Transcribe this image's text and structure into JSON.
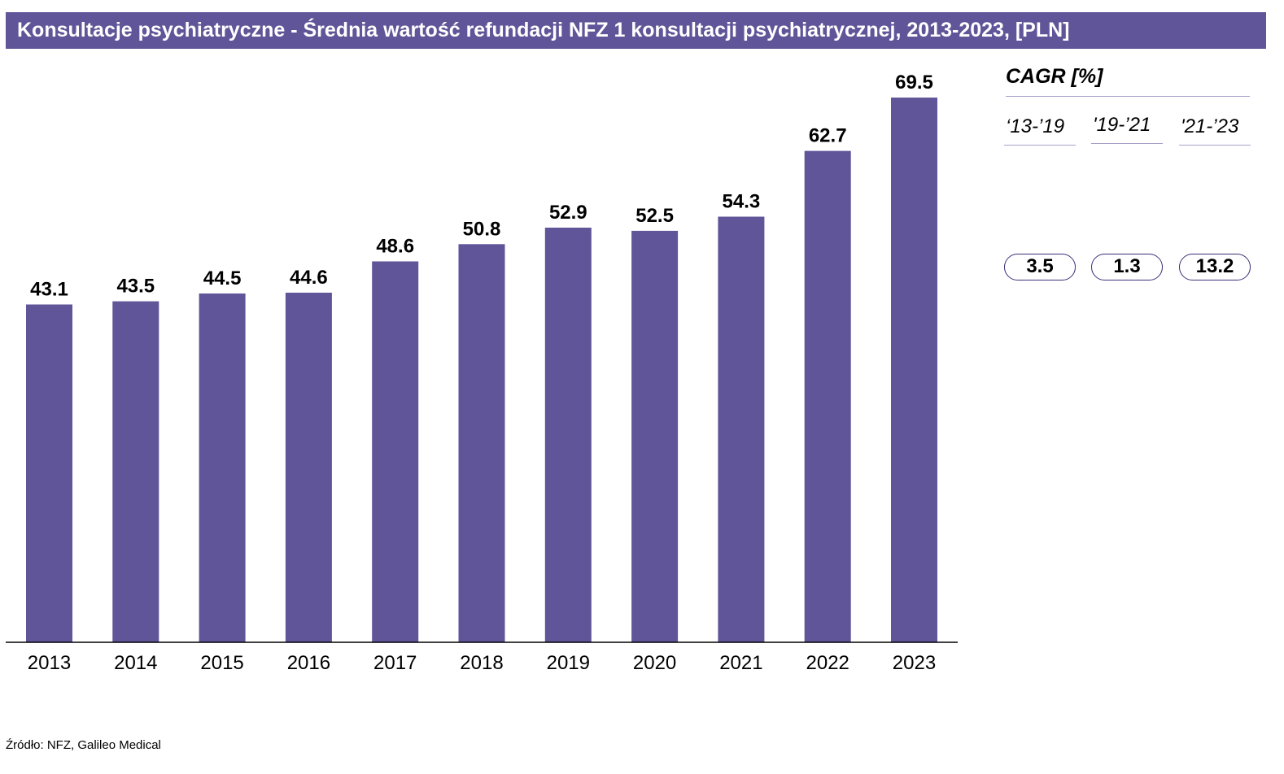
{
  "title": "Konsultacje psychiatryczne - Średnia wartość refundacji NFZ 1 konsultacji psychiatrycznej, 2013-2023, [PLN]",
  "chart_data": {
    "type": "bar",
    "title": "Konsultacje psychiatryczne - Średnia wartość refundacji NFZ 1 konsultacji psychiatrycznej, 2013-2023, [PLN]",
    "categories": [
      "2013",
      "2014",
      "2015",
      "2016",
      "2017",
      "2018",
      "2019",
      "2020",
      "2021",
      "2022",
      "2023"
    ],
    "values": [
      43.1,
      43.5,
      44.5,
      44.6,
      48.6,
      50.8,
      52.9,
      52.5,
      54.3,
      62.7,
      69.5
    ],
    "value_labels": [
      "43.1",
      "43.5",
      "44.5",
      "44.6",
      "48.6",
      "50.8",
      "52.9",
      "52.5",
      "54.3",
      "62.7",
      "69.5"
    ],
    "ylim": [
      0,
      69.5
    ],
    "grid": false,
    "legend": "none",
    "bar_color": "#5f5598"
  },
  "cagr": {
    "title": "CAGR [%]",
    "periods": [
      "‘13-’19",
      "'19-’21",
      "'21-’23"
    ],
    "values": [
      "3.5",
      "1.3",
      "13.2"
    ]
  },
  "source": "Źródło: NFZ, Galileo Medical",
  "colors": {
    "accent": "#5f5598",
    "pill_border": "#3a2f7a",
    "divider": "#a7a0c8"
  }
}
